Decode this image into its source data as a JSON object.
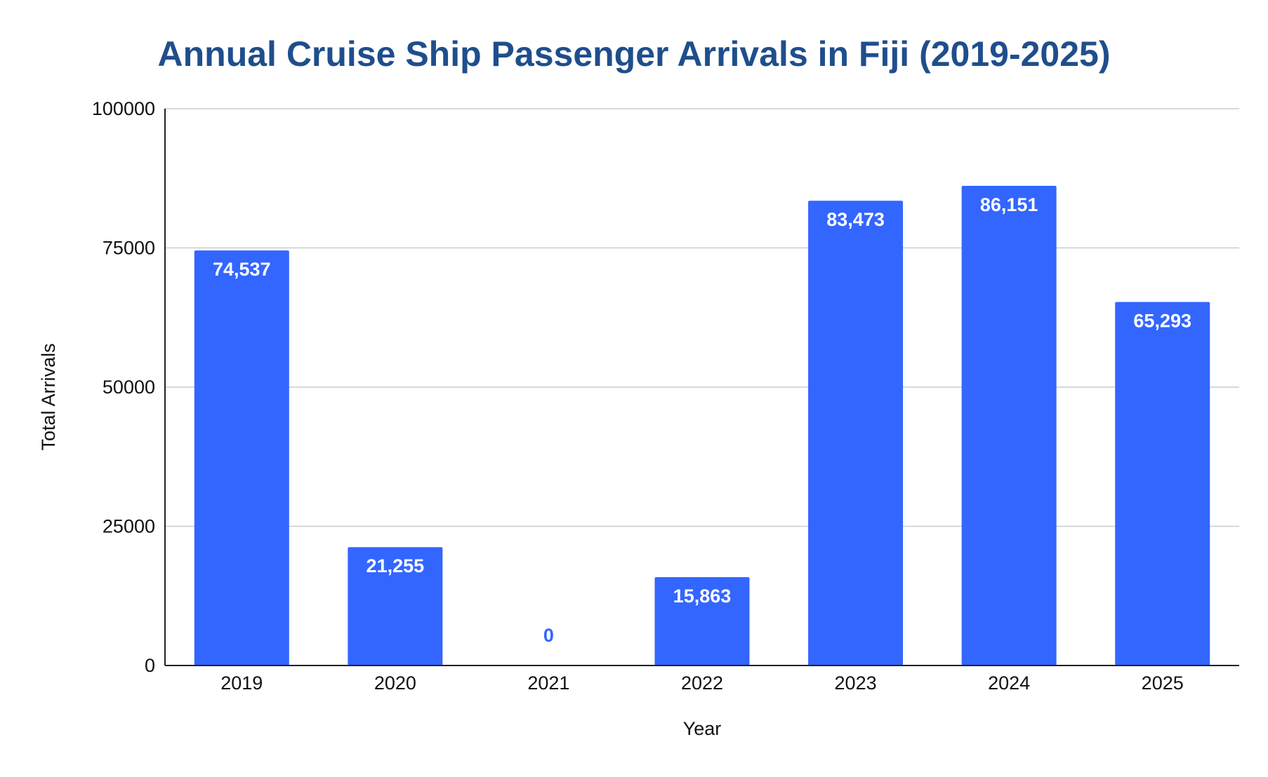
{
  "chart_data": {
    "type": "bar",
    "title": "Annual Cruise Ship Passenger Arrivals in Fiji (2019-2025)",
    "xlabel": "Year",
    "ylabel": "Total Arrivals",
    "categories": [
      "2019",
      "2020",
      "2021",
      "2022",
      "2023",
      "2024",
      "2025"
    ],
    "values": [
      74537,
      21255,
      0,
      15863,
      83473,
      86151,
      65293
    ],
    "data_labels": [
      "74,537",
      "21,255",
      "0",
      "15,863",
      "83,473",
      "86,151",
      "65,293"
    ],
    "ylim": [
      0,
      100000
    ],
    "yticks": [
      0,
      25000,
      50000,
      75000,
      100000
    ],
    "ytick_labels": [
      "0",
      "25000",
      "50000",
      "75000",
      "100000"
    ],
    "grid": true,
    "legend": "none",
    "colors": {
      "bar": "#3366ff",
      "title": "#1f4e8c",
      "label_inside": "#ffffff",
      "label_outside": "#3366ff",
      "gridline": "#cccccc",
      "axis": "#222222"
    }
  }
}
